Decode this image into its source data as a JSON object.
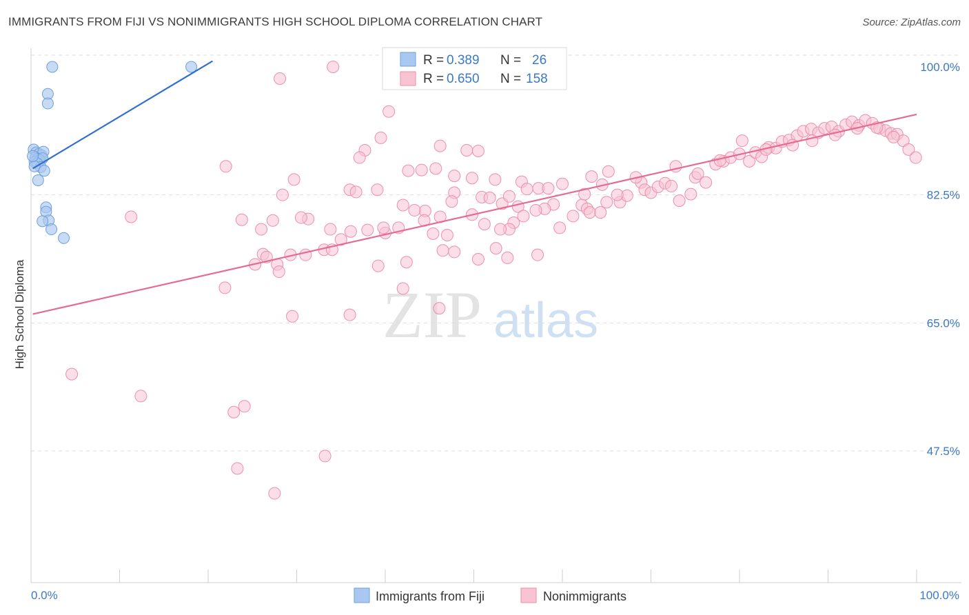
{
  "header": {
    "title": "IMMIGRANTS FROM FIJI VS NONIMMIGRANTS HIGH SCHOOL DIPLOMA CORRELATION CHART",
    "source": "Source: ZipAtlas.com"
  },
  "watermark": {
    "zip": "ZIP",
    "atlas": "atlas"
  },
  "legend": {
    "rows": [
      {
        "r_label": "R =",
        "r_value": "0.389",
        "n_label": "N =",
        "n_value": "26",
        "color": "#a9c8f0"
      },
      {
        "r_label": "R =",
        "r_value": "0.650",
        "n_label": "N =",
        "n_value": "158",
        "color": "#f6b8cc"
      }
    ]
  },
  "bottom_legend": {
    "series0": "Immigrants from Fiji",
    "series1": "Nonimmigrants"
  },
  "colors": {
    "fiji_fill": "#a9c8f0",
    "fiji_stroke": "#6d9fdd",
    "fiji_line": "#2f6fce",
    "non_fill": "#f8c3d3",
    "non_stroke": "#eb8fac",
    "non_line": "#e46c93",
    "tick_text": "#3a78c8",
    "grid": "#dddddd"
  },
  "chart_data": {
    "type": "scatter",
    "xlabel": "",
    "ylabel": "High School Diploma",
    "xlim": [
      0,
      100
    ],
    "ylim": [
      32.5,
      101.5
    ],
    "x_tick_labels": [
      "0.0%",
      "100.0%"
    ],
    "y_ticks": [
      47.5,
      65.0,
      82.5,
      100.0
    ],
    "y_tick_labels": [
      "47.5%",
      "65.0%",
      "82.5%",
      "100.0%"
    ],
    "grid": true,
    "legend_position": "top-center",
    "series": [
      {
        "name": "Immigrants from Fiji",
        "r": 0.389,
        "n": 26,
        "trend": {
          "x": [
            0.2,
            20.5
          ],
          "y": [
            86.1,
            100.8
          ]
        },
        "points": [
          [
            2.4,
            100.0
          ],
          [
            18.1,
            100.0
          ],
          [
            1.9,
            96.3
          ],
          [
            1.9,
            95.0
          ],
          [
            0.3,
            88.7
          ],
          [
            0.6,
            88.3
          ],
          [
            0.9,
            88.1
          ],
          [
            1.2,
            87.9
          ],
          [
            1.4,
            88.4
          ],
          [
            0.5,
            87.6
          ],
          [
            0.8,
            87.4
          ],
          [
            1.0,
            87.2
          ],
          [
            1.3,
            87.5
          ],
          [
            0.4,
            87.0
          ],
          [
            0.7,
            86.8
          ],
          [
            1.1,
            86.3
          ],
          [
            0.4,
            86.4
          ],
          [
            1.5,
            85.8
          ],
          [
            0.8,
            84.5
          ],
          [
            1.7,
            80.8
          ],
          [
            1.7,
            80.2
          ],
          [
            2.0,
            79.0
          ],
          [
            1.3,
            78.9
          ],
          [
            2.3,
            77.8
          ],
          [
            3.7,
            76.6
          ],
          [
            0.2,
            87.8
          ]
        ]
      },
      {
        "name": "Nonimmigrants",
        "r": 0.65,
        "n": 158,
        "trend": {
          "x": [
            0.2,
            100.0
          ],
          "y": [
            66.2,
            93.5
          ]
        },
        "points": [
          [
            34.1,
            100.0
          ],
          [
            28.1,
            98.4
          ],
          [
            40.4,
            93.9
          ],
          [
            39.5,
            90.3
          ],
          [
            37.7,
            88.6
          ],
          [
            37.1,
            87.6
          ],
          [
            46.2,
            89.2
          ],
          [
            49.2,
            88.6
          ],
          [
            50.5,
            88.5
          ],
          [
            42.6,
            85.8
          ],
          [
            44.1,
            85.9
          ],
          [
            45.7,
            86.1
          ],
          [
            47.8,
            85.1
          ],
          [
            49.8,
            84.8
          ],
          [
            52.4,
            84.6
          ],
          [
            55.4,
            84.3
          ],
          [
            36.0,
            83.2
          ],
          [
            36.7,
            82.9
          ],
          [
            29.7,
            84.6
          ],
          [
            28.4,
            82.5
          ],
          [
            39.1,
            83.2
          ],
          [
            42.0,
            81.1
          ],
          [
            44.5,
            80.3
          ],
          [
            47.8,
            82.8
          ],
          [
            50.9,
            82.2
          ],
          [
            51.8,
            82.1
          ],
          [
            53.2,
            81.3
          ],
          [
            54.0,
            82.3
          ],
          [
            55.0,
            80.9
          ],
          [
            56.0,
            83.3
          ],
          [
            57.3,
            83.4
          ],
          [
            58.4,
            83.4
          ],
          [
            60.0,
            84.0
          ],
          [
            62.2,
            81.1
          ],
          [
            62.8,
            80.6
          ],
          [
            63.1,
            80.1
          ],
          [
            64.3,
            80.1
          ],
          [
            61.2,
            79.6
          ],
          [
            63.3,
            85.0
          ],
          [
            64.5,
            83.9
          ],
          [
            65.0,
            81.5
          ],
          [
            66.5,
            81.5
          ],
          [
            67.3,
            82.4
          ],
          [
            68.9,
            84.2
          ],
          [
            69.3,
            83.2
          ],
          [
            70.0,
            82.8
          ],
          [
            70.8,
            83.6
          ],
          [
            71.6,
            84.1
          ],
          [
            72.3,
            83.7
          ],
          [
            74.5,
            82.6
          ],
          [
            75.0,
            84.9
          ],
          [
            76.2,
            84.2
          ],
          [
            73.2,
            81.7
          ],
          [
            75.3,
            85.4
          ],
          [
            77.3,
            86.7
          ],
          [
            78.2,
            87.1
          ],
          [
            79.0,
            87.6
          ],
          [
            80.0,
            88.1
          ],
          [
            81.1,
            87.1
          ],
          [
            81.8,
            88.3
          ],
          [
            82.5,
            87.7
          ],
          [
            83.3,
            89.0
          ],
          [
            84.1,
            88.9
          ],
          [
            84.8,
            89.8
          ],
          [
            85.6,
            90.0
          ],
          [
            86.5,
            90.6
          ],
          [
            87.2,
            91.2
          ],
          [
            88.1,
            91.5
          ],
          [
            88.9,
            91.0
          ],
          [
            89.6,
            91.6
          ],
          [
            90.4,
            91.8
          ],
          [
            91.2,
            91.2
          ],
          [
            92.0,
            92.1
          ],
          [
            92.7,
            92.5
          ],
          [
            93.5,
            92.0
          ],
          [
            94.2,
            92.7
          ],
          [
            95.0,
            92.3
          ],
          [
            95.8,
            91.6
          ],
          [
            96.5,
            91.3
          ],
          [
            97.1,
            90.9
          ],
          [
            97.8,
            90.8
          ],
          [
            98.5,
            89.9
          ],
          [
            99.1,
            88.7
          ],
          [
            99.9,
            87.6
          ],
          [
            80.3,
            89.9
          ],
          [
            83.0,
            88.7
          ],
          [
            86.0,
            89.3
          ],
          [
            88.2,
            89.9
          ],
          [
            90.8,
            90.7
          ],
          [
            93.3,
            91.6
          ],
          [
            95.5,
            91.7
          ],
          [
            97.4,
            90.4
          ],
          [
            77.8,
            87.2
          ],
          [
            72.8,
            86.4
          ],
          [
            68.3,
            84.9
          ],
          [
            66.2,
            82.5
          ],
          [
            65.2,
            85.7
          ],
          [
            62.5,
            82.6
          ],
          [
            59.0,
            81.2
          ],
          [
            58.0,
            80.6
          ],
          [
            57.0,
            80.4
          ],
          [
            55.6,
            79.6
          ],
          [
            54.5,
            78.7
          ],
          [
            54.0,
            77.8
          ],
          [
            53.0,
            77.8
          ],
          [
            52.5,
            75.2
          ],
          [
            51.2,
            78.5
          ],
          [
            49.8,
            79.8
          ],
          [
            47.5,
            81.6
          ],
          [
            46.2,
            79.5
          ],
          [
            44.4,
            79.0
          ],
          [
            43.3,
            80.4
          ],
          [
            41.5,
            78.0
          ],
          [
            40.0,
            77.3
          ],
          [
            38.0,
            77.7
          ],
          [
            36.1,
            77.5
          ],
          [
            35.0,
            76.4
          ],
          [
            33.8,
            77.8
          ],
          [
            33.1,
            75.0
          ],
          [
            31.3,
            79.2
          ],
          [
            30.5,
            79.4
          ],
          [
            29.3,
            74.3
          ],
          [
            26.2,
            74.4
          ],
          [
            26.6,
            74.0
          ],
          [
            25.3,
            73.0
          ],
          [
            27.3,
            79.0
          ],
          [
            26.0,
            77.8
          ],
          [
            23.8,
            79.1
          ],
          [
            31.0,
            74.3
          ],
          [
            34.0,
            75.0
          ],
          [
            39.8,
            78.0
          ],
          [
            45.4,
            77.2
          ],
          [
            39.2,
            72.8
          ],
          [
            42.4,
            73.3
          ],
          [
            46.5,
            74.9
          ],
          [
            47.0,
            77.0
          ],
          [
            47.8,
            74.7
          ],
          [
            50.5,
            73.7
          ],
          [
            53.8,
            73.9
          ],
          [
            57.2,
            74.3
          ],
          [
            59.7,
            78.0
          ],
          [
            42.0,
            69.7
          ],
          [
            46.1,
            67.0
          ],
          [
            36.0,
            66.1
          ],
          [
            29.5,
            65.9
          ],
          [
            27.8,
            73.0
          ],
          [
            22.0,
            86.4
          ],
          [
            21.9,
            69.8
          ],
          [
            28.0,
            72.0
          ],
          [
            11.3,
            79.5
          ],
          [
            4.6,
            58.0
          ],
          [
            12.4,
            55.0
          ],
          [
            22.9,
            52.8
          ],
          [
            24.1,
            53.6
          ],
          [
            23.3,
            45.1
          ],
          [
            33.2,
            46.8
          ],
          [
            27.5,
            41.7
          ]
        ]
      }
    ]
  }
}
